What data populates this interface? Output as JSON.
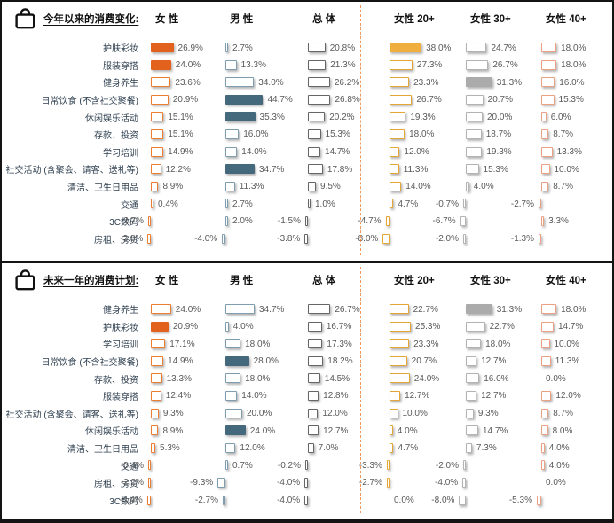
{
  "palette": {
    "frame_border": "#141414",
    "divider_dashed": "#ED7D31",
    "category_text": "#2F4050",
    "value_text": "#595959",
    "title_text": "#111111"
  },
  "chart_data": [
    {
      "type": "bar",
      "orientation": "horizontal",
      "title": "今年以来的消费变化:",
      "unit": "%",
      "value_label_format": "0.0%",
      "grid": false,
      "legend_position": "column-headers-top",
      "categories": [
        "护肤彩妆",
        "服装穿搭",
        "健身养生",
        "日常饮食 (不含社交聚餐)",
        "休闲娱乐活动",
        "存款、投资",
        "学习培训",
        "社交活动 (含聚会、请客、送礼等)",
        "清洁、卫生日用品",
        "交通",
        "3C数码",
        "房租、房贷"
      ],
      "series": [
        {
          "name": "女 性",
          "outline": "#ED7D31",
          "solid_fill": "#E2621D",
          "values": [
            26.9,
            24.0,
            23.6,
            20.9,
            15.1,
            15.1,
            14.9,
            12.2,
            8.9,
            0.4,
            -2.7,
            -3.8
          ],
          "solid": [
            1,
            1,
            0,
            0,
            0,
            0,
            0,
            0,
            0,
            0,
            0,
            0
          ]
        },
        {
          "name": "男 性",
          "outline": "#7F9DB0",
          "solid_fill": "#44697D",
          "values": [
            2.7,
            13.3,
            34.0,
            44.7,
            35.3,
            16.0,
            14.0,
            34.7,
            11.3,
            2.7,
            2.0,
            -4.0
          ],
          "solid": [
            0,
            0,
            0,
            1,
            1,
            0,
            0,
            1,
            0,
            0,
            0,
            0
          ]
        },
        {
          "name": "总 体",
          "outline": "#666666",
          "solid_fill": "#666666",
          "values": [
            20.8,
            21.3,
            26.2,
            26.8,
            20.2,
            15.3,
            14.7,
            17.8,
            9.5,
            1.0,
            -1.5,
            -3.8
          ],
          "solid": [
            0,
            0,
            0,
            0,
            0,
            0,
            0,
            0,
            0,
            0,
            0,
            0
          ]
        },
        {
          "name": "女性 20+",
          "outline": "#E4A637",
          "solid_fill": "#EFAE3D",
          "values": [
            38.0,
            27.3,
            23.3,
            26.7,
            19.3,
            18.0,
            12.0,
            11.3,
            14.0,
            4.7,
            -4.7,
            -8.0
          ],
          "solid": [
            1,
            0,
            0,
            0,
            0,
            0,
            0,
            0,
            0,
            0,
            0,
            0
          ]
        },
        {
          "name": "女性 30+",
          "outline": "#B3B3B3",
          "solid_fill": "#ABABAB",
          "values": [
            24.7,
            26.7,
            31.3,
            20.7,
            20.0,
            18.7,
            19.3,
            15.3,
            4.0,
            -0.7,
            -6.7,
            -2.0
          ],
          "solid": [
            0,
            0,
            1,
            0,
            0,
            0,
            0,
            0,
            0,
            0,
            0,
            0
          ]
        },
        {
          "name": "女性 40+",
          "outline": "#EDA183",
          "solid_fill": "#EDA183",
          "values": [
            18.0,
            18.0,
            16.0,
            15.3,
            6.0,
            8.7,
            13.3,
            10.0,
            8.7,
            -2.7,
            3.3,
            -1.3
          ],
          "solid": [
            0,
            0,
            0,
            0,
            0,
            0,
            0,
            0,
            0,
            0,
            0,
            0
          ]
        }
      ]
    },
    {
      "type": "bar",
      "orientation": "horizontal",
      "title": "未来一年的消费计划:",
      "unit": "%",
      "value_label_format": "0.0%",
      "grid": false,
      "legend_position": "column-headers-top",
      "categories": [
        "健身养生",
        "护肤彩妆",
        "学习培训",
        "日常饮食 (不含社交聚餐)",
        "存款、投资",
        "服装穿搭",
        "社交活动 (含聚会、请客、送礼等)",
        "休闲娱乐活动",
        "清洁、卫生日用品",
        "交通",
        "房租、房贷",
        "3C数码"
      ],
      "series": [
        {
          "name": "女 性",
          "outline": "#ED7D31",
          "solid_fill": "#E2621D",
          "values": [
            24.0,
            20.9,
            17.1,
            14.9,
            13.3,
            12.4,
            9.3,
            8.9,
            5.3,
            -0.4,
            -2.2,
            -4.4
          ],
          "solid": [
            0,
            1,
            0,
            0,
            0,
            0,
            0,
            0,
            0,
            0,
            0,
            0
          ]
        },
        {
          "name": "男 性",
          "outline": "#7F9DB0",
          "solid_fill": "#44697D",
          "values": [
            34.7,
            4.0,
            18.0,
            28.0,
            18.0,
            14.0,
            20.0,
            24.0,
            12.0,
            0.7,
            -9.3,
            -2.7
          ],
          "solid": [
            0,
            0,
            0,
            1,
            0,
            0,
            0,
            1,
            0,
            0,
            0,
            0
          ]
        },
        {
          "name": "总 体",
          "outline": "#666666",
          "solid_fill": "#666666",
          "values": [
            26.7,
            16.7,
            17.3,
            18.2,
            14.5,
            12.8,
            12.0,
            12.7,
            7.0,
            -0.2,
            -4.0,
            -4.0
          ],
          "solid": [
            0,
            0,
            0,
            0,
            0,
            0,
            0,
            0,
            0,
            0,
            0,
            0
          ]
        },
        {
          "name": "女性 20+",
          "outline": "#E4A637",
          "solid_fill": "#EFAE3D",
          "values": [
            22.7,
            25.3,
            23.3,
            20.7,
            24.0,
            12.7,
            10.0,
            4.0,
            4.7,
            -3.3,
            -2.7,
            0.0
          ],
          "solid": [
            0,
            0,
            0,
            0,
            0,
            0,
            0,
            0,
            0,
            0,
            0,
            0
          ]
        },
        {
          "name": "女性 30+",
          "outline": "#B3B3B3",
          "solid_fill": "#ABABAB",
          "values": [
            31.3,
            22.7,
            18.0,
            12.7,
            16.0,
            12.7,
            9.3,
            14.7,
            7.3,
            -2.0,
            -4.0,
            -8.0
          ],
          "solid": [
            1,
            0,
            0,
            0,
            0,
            0,
            0,
            0,
            0,
            0,
            0,
            0
          ]
        },
        {
          "name": "女性 40+",
          "outline": "#EDA183",
          "solid_fill": "#EDA183",
          "values": [
            18.0,
            14.7,
            10.0,
            11.3,
            0.0,
            12.0,
            8.7,
            8.0,
            4.0,
            4.0,
            0.0,
            -5.3
          ],
          "solid": [
            0,
            0,
            0,
            0,
            0,
            0,
            0,
            0,
            0,
            0,
            0,
            0
          ]
        }
      ]
    }
  ]
}
